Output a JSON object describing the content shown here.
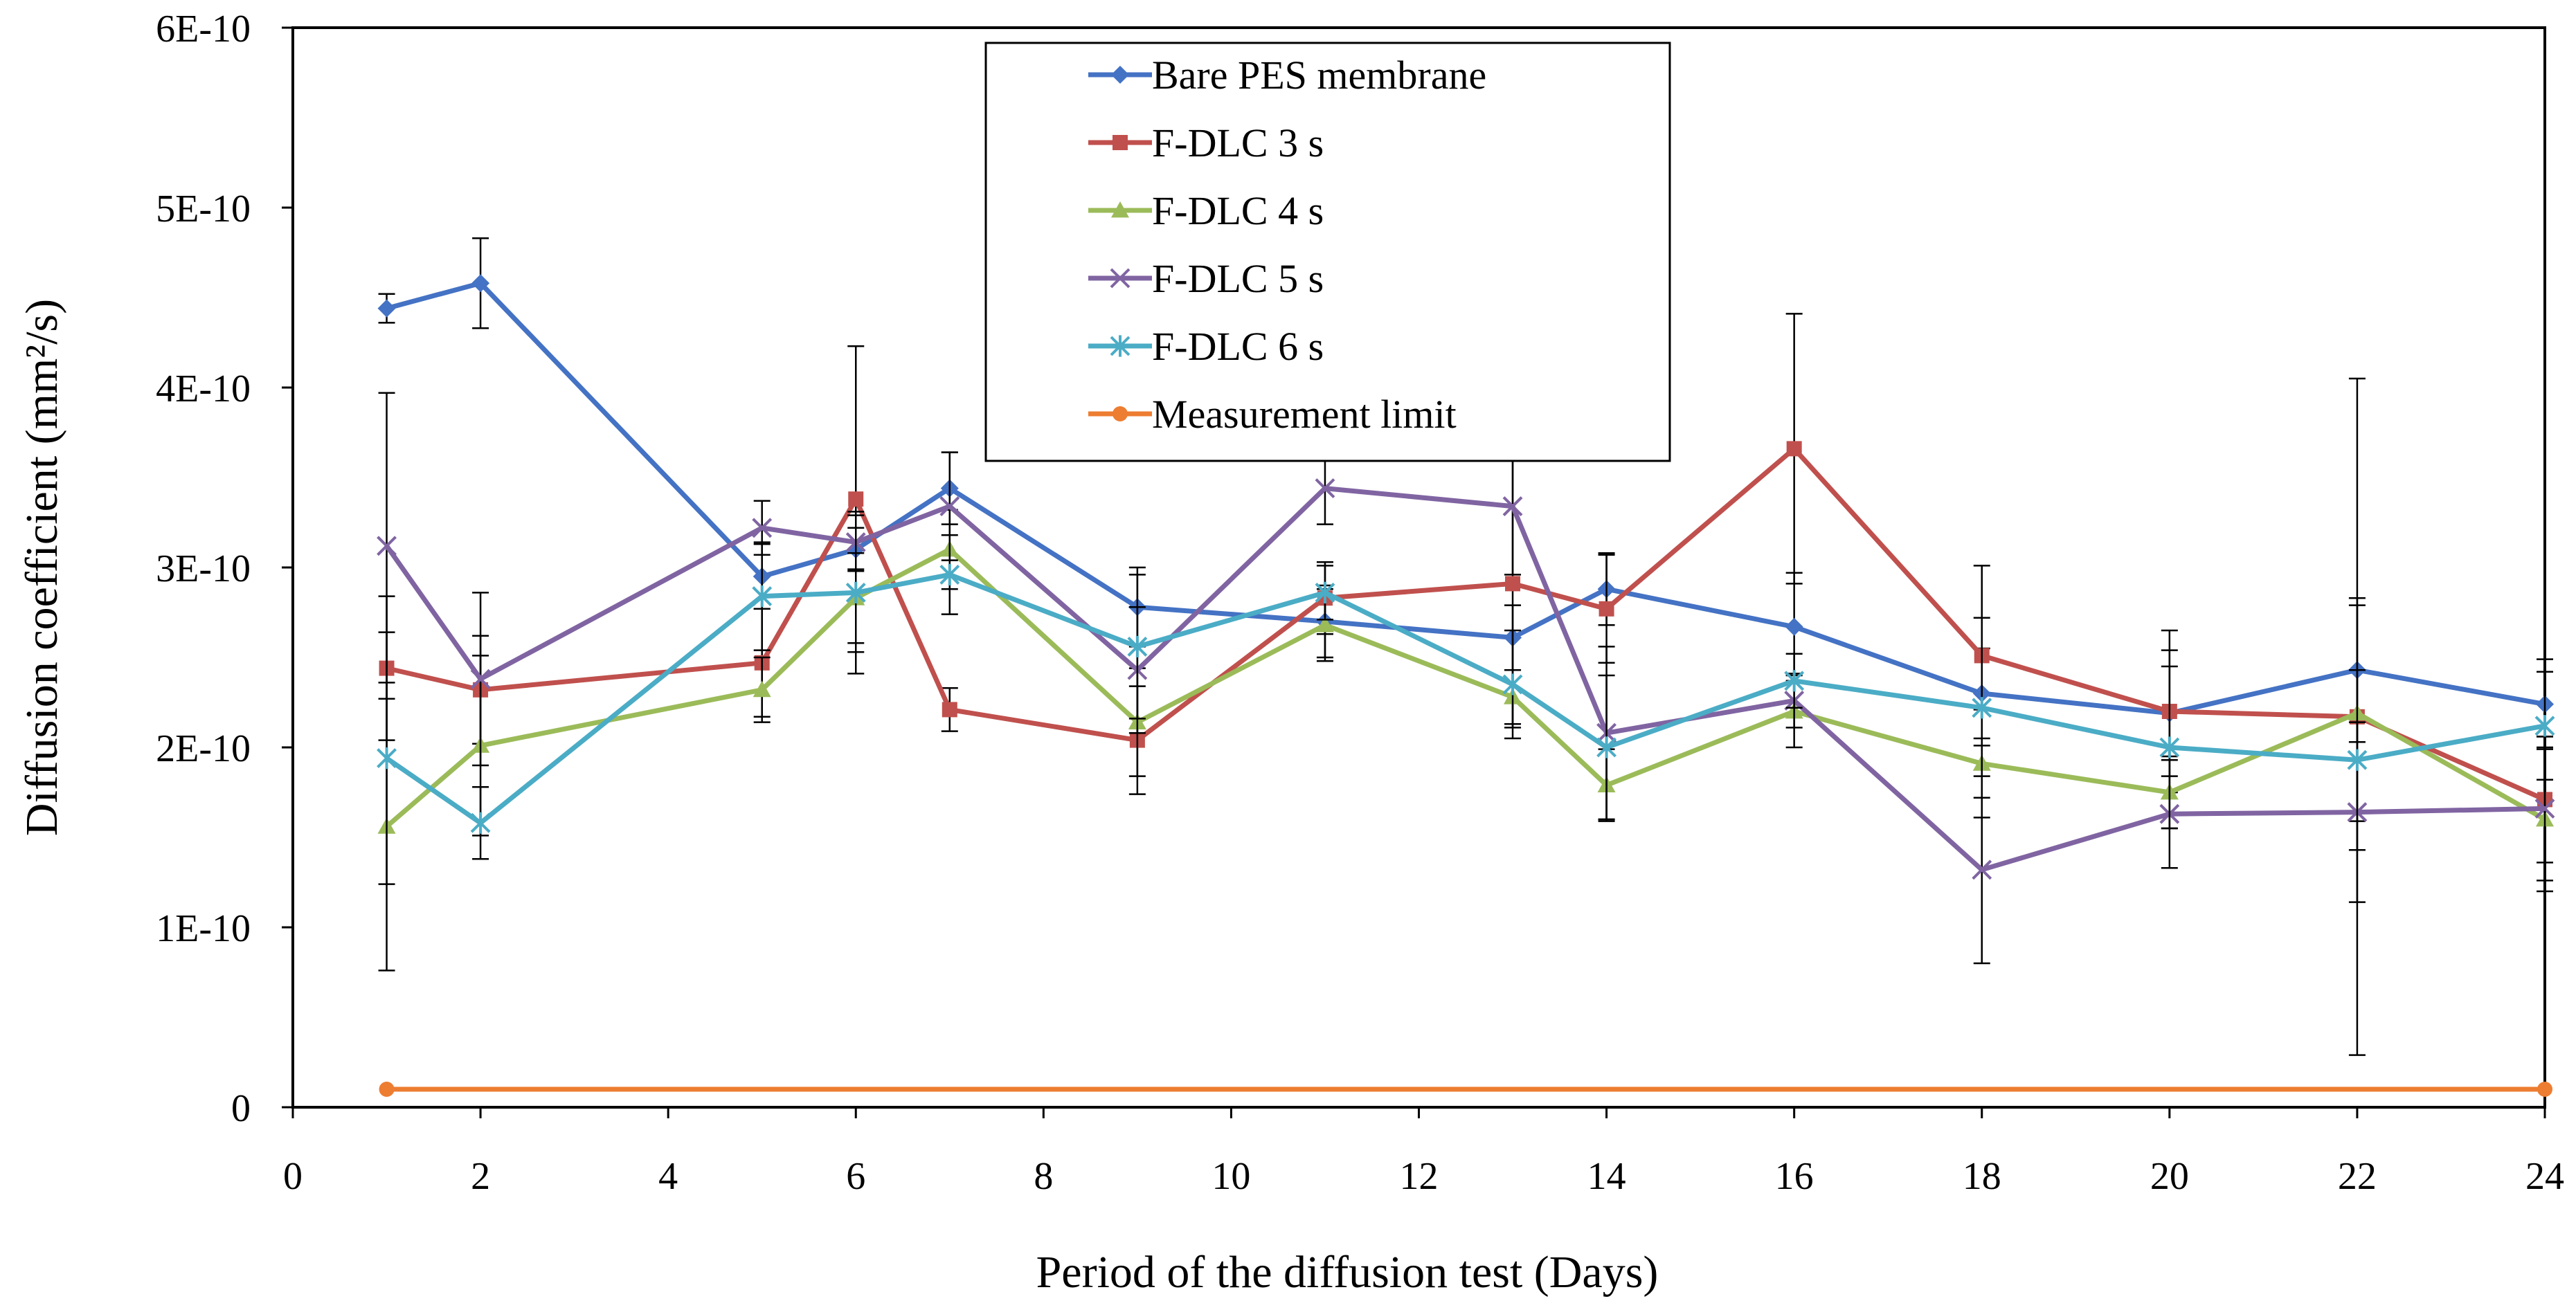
{
  "chart_data": {
    "type": "line",
    "title": "",
    "xlabel": "Period of the diffusion  test (Days)",
    "ylabel": "Diffusion  coefficient  (mm²/s)",
    "xlim": [
      0,
      24
    ],
    "ylim": [
      0,
      6e-10
    ],
    "xticks": [
      0,
      2,
      4,
      6,
      8,
      10,
      12,
      14,
      16,
      18,
      20,
      22,
      24
    ],
    "xtick_labels": [
      "0",
      "2",
      "4",
      "6",
      "8",
      "10",
      "12",
      "14",
      "16",
      "18",
      "20",
      "22",
      "24"
    ],
    "yticks": [
      0,
      1e-10,
      2e-10,
      3e-10,
      4e-10,
      5e-10,
      6e-10
    ],
    "ytick_labels": [
      "0",
      "1E-10",
      "2E-10",
      "3E-10",
      "4E-10",
      "5E-10",
      "6E-10"
    ],
    "x": [
      1,
      2,
      5,
      6,
      7,
      9,
      11,
      13,
      14,
      16,
      18,
      20,
      22,
      24
    ],
    "legend_position": "top-center",
    "grid": false,
    "series": [
      {
        "name": "Bare PES membrane",
        "color": "#4472C4",
        "marker": "diamond",
        "values": [
          4.44e-10,
          4.58e-10,
          2.95e-10,
          3.1e-10,
          3.44e-10,
          2.78e-10,
          2.7e-10,
          2.61e-10,
          2.88e-10,
          2.67e-10,
          2.3e-10,
          2.19e-10,
          2.43e-10,
          2.24e-10
        ],
        "errors": [
          8e-12,
          2.5e-11,
          1.8e-11,
          1.2e-11,
          2e-11,
          2.2e-11,
          2e-11,
          1.8e-11,
          2e-11,
          3e-11,
          2.5e-11,
          3.5e-11,
          4e-11,
          2.5e-11
        ]
      },
      {
        "name": "F-DLC 3 s",
        "color": "#C0504D",
        "marker": "square",
        "values": [
          2.44e-10,
          2.32e-10,
          2.47e-10,
          3.38e-10,
          2.21e-10,
          2.04e-10,
          2.83e-10,
          2.91e-10,
          2.77e-10,
          3.66e-10,
          2.51e-10,
          2.2e-10,
          2.17e-10,
          1.71e-10
        ],
        "errors": [
          4e-11,
          3e-11,
          3e-11,
          8.5e-11,
          1.2e-11,
          3e-11,
          2e-11,
          8e-11,
          3e-11,
          7.5e-11,
          5e-11,
          4.5e-11,
          1.88e-10,
          3.5e-11
        ]
      },
      {
        "name": "F-DLC 4 s",
        "color": "#9BBB59",
        "marker": "triangle",
        "values": [
          1.56e-10,
          2.01e-10,
          2.32e-10,
          2.83e-10,
          3.1e-10,
          2.14e-10,
          2.68e-10,
          2.28e-10,
          1.79e-10,
          2.2e-10,
          1.91e-10,
          1.75e-10,
          2.19e-10,
          1.6e-10
        ],
        "errors": [
          8e-11,
          5e-11,
          1.8e-11,
          2.5e-11,
          2.2e-11,
          3e-11,
          2e-11,
          1.5e-11,
          2e-11,
          2e-11,
          3e-11,
          2e-11,
          6e-11,
          4e-11
        ]
      },
      {
        "name": "F-DLC 5 s",
        "color": "#8064A2",
        "marker": "x",
        "values": [
          3.12e-10,
          2.38e-10,
          3.22e-10,
          3.14e-10,
          3.34e-10,
          2.43e-10,
          3.44e-10,
          3.34e-10,
          2.08e-10,
          2.26e-10,
          1.32e-10,
          1.63e-10,
          1.64e-10,
          1.66e-10
        ],
        "errors": [
          8.5e-11,
          4.8e-11,
          1.5e-11,
          1.5e-11,
          3e-11,
          3.5e-11,
          2e-11,
          3.8e-11,
          4.8e-11,
          1.5e-11,
          5.2e-11,
          3e-11,
          5e-11,
          4e-11
        ]
      },
      {
        "name": "F-DLC 6 s",
        "color": "#4BACC6",
        "marker": "asterisk",
        "values": [
          1.94e-10,
          1.58e-10,
          2.84e-10,
          2.86e-10,
          2.96e-10,
          2.56e-10,
          2.86e-10,
          2.35e-10,
          2e-10,
          2.37e-10,
          2.22e-10,
          2e-10,
          1.93e-10,
          2.12e-10
        ],
        "errors": [
          7e-11,
          2e-11,
          3e-11,
          4.5e-11,
          2.2e-11,
          4e-11,
          1.5e-11,
          3e-11,
          4e-11,
          1.5e-11,
          5e-11,
          4.5e-11,
          5e-11,
          3e-11
        ]
      },
      {
        "name": "Measurement limit",
        "color": "#ED7D31",
        "marker": "circle",
        "x": [
          1,
          24
        ],
        "values": [
          1e-11,
          1e-11
        ],
        "errors": null
      }
    ]
  }
}
